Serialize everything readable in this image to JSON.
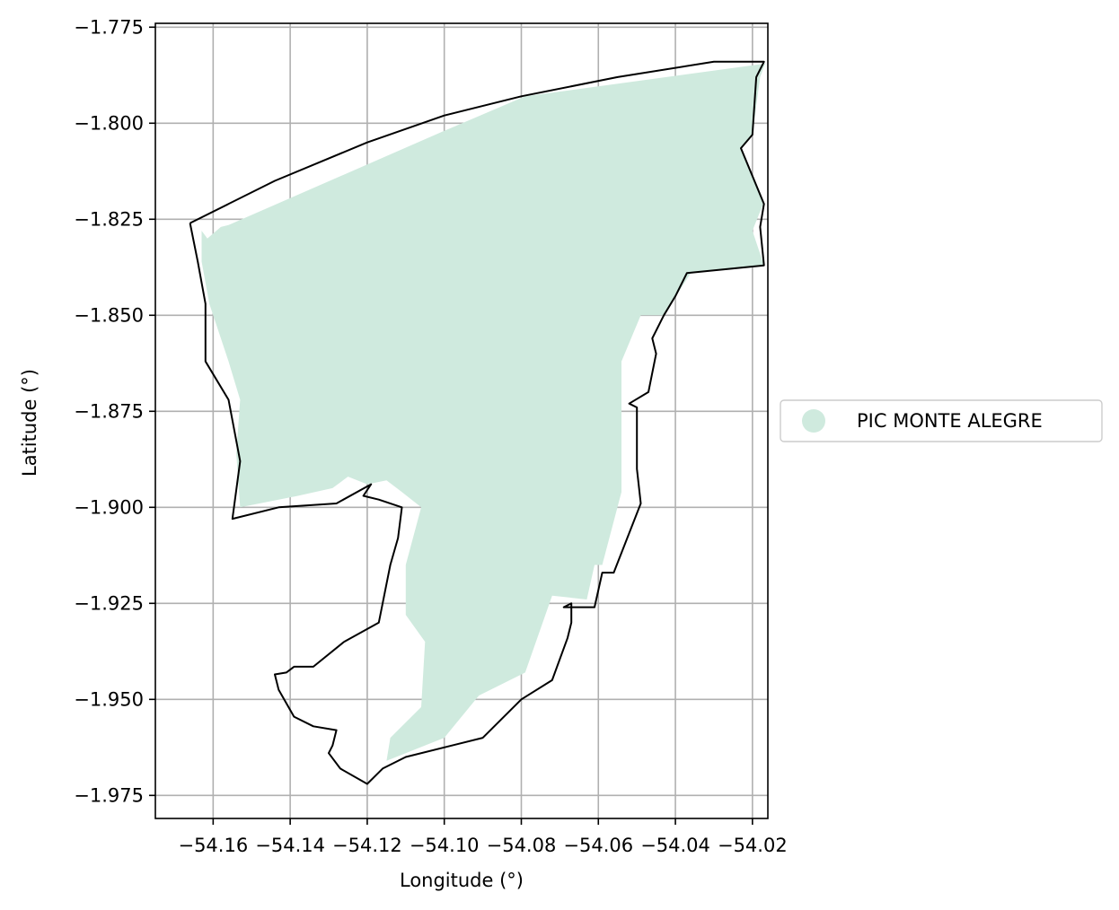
{
  "chart_data": {
    "type": "map",
    "title": "",
    "xlabel": "Longitude (°)",
    "ylabel": "Latitude (°)",
    "xlim": [
      -54.175,
      -54.016
    ],
    "ylim": [
      -1.981,
      -1.774
    ],
    "x_ticks": [
      -54.16,
      -54.14,
      -54.12,
      -54.1,
      -54.08,
      -54.06,
      -54.04,
      -54.02
    ],
    "x_tick_labels": [
      "−54.16",
      "−54.14",
      "−54.12",
      "−54.10",
      "−54.08",
      "−54.06",
      "−54.04",
      "−54.02"
    ],
    "y_ticks": [
      -1.775,
      -1.8,
      -1.825,
      -1.85,
      -1.875,
      -1.9,
      -1.925,
      -1.95,
      -1.975
    ],
    "y_tick_labels": [
      "−1.775",
      "−1.800",
      "−1.825",
      "−1.850",
      "−1.875",
      "−1.900",
      "−1.925",
      "−1.950",
      "−1.975"
    ],
    "grid": true,
    "legend": {
      "placement": "right",
      "entries": [
        {
          "label": "PIC MONTE ALEGRE",
          "color": "#cfeade"
        }
      ]
    },
    "filled_area": {
      "name": "PIC MONTE ALEGRE",
      "color": "#cfeade",
      "coords": [
        [
          -54.163,
          -1.828
        ],
        [
          -54.1615,
          -1.83
        ],
        [
          -54.158,
          -1.827
        ],
        [
          -54.156,
          -1.8265
        ],
        [
          -54.1,
          -1.802
        ],
        [
          -54.079,
          -1.793
        ],
        [
          -54.0167,
          -1.7845
        ],
        [
          -54.018,
          -1.788
        ],
        [
          -54.02,
          -1.803
        ],
        [
          -54.023,
          -1.8065
        ],
        [
          -54.017,
          -1.8205
        ],
        [
          -54.02,
          -1.828
        ],
        [
          -54.017,
          -1.837
        ],
        [
          -54.036,
          -1.839
        ],
        [
          -54.043,
          -1.85
        ],
        [
          -54.049,
          -1.85
        ],
        [
          -54.054,
          -1.862
        ],
        [
          -54.054,
          -1.896
        ],
        [
          -54.059,
          -1.915
        ],
        [
          -54.061,
          -1.915
        ],
        [
          -54.063,
          -1.924
        ],
        [
          -54.072,
          -1.923
        ],
        [
          -54.079,
          -1.943
        ],
        [
          -54.091,
          -1.949
        ],
        [
          -54.1,
          -1.96
        ],
        [
          -54.115,
          -1.966
        ],
        [
          -54.114,
          -1.96
        ],
        [
          -54.106,
          -1.952
        ],
        [
          -54.105,
          -1.935
        ],
        [
          -54.11,
          -1.928
        ],
        [
          -54.11,
          -1.915
        ],
        [
          -54.106,
          -1.9
        ],
        [
          -54.111,
          -1.896
        ],
        [
          -54.115,
          -1.893
        ],
        [
          -54.12,
          -1.894
        ],
        [
          -54.125,
          -1.892
        ],
        [
          -54.129,
          -1.895
        ],
        [
          -54.138,
          -1.897
        ],
        [
          -54.153,
          -1.9
        ],
        [
          -54.154,
          -1.886
        ],
        [
          -54.153,
          -1.872
        ],
        [
          -54.156,
          -1.862
        ],
        [
          -54.161,
          -1.847
        ],
        [
          -54.163,
          -1.836
        ]
      ]
    },
    "outline": {
      "color": "#000000",
      "coords": [
        [
          -54.166,
          -1.826
        ],
        [
          -54.144,
          -1.815
        ],
        [
          -54.12,
          -1.805
        ],
        [
          -54.1,
          -1.798
        ],
        [
          -54.08,
          -1.793
        ],
        [
          -54.055,
          -1.788
        ],
        [
          -54.03,
          -1.784
        ],
        [
          -54.017,
          -1.784
        ],
        [
          -54.019,
          -1.788
        ],
        [
          -54.02,
          -1.803
        ],
        [
          -54.023,
          -1.8065
        ],
        [
          -54.017,
          -1.821
        ],
        [
          -54.018,
          -1.827
        ],
        [
          -54.017,
          -1.837
        ],
        [
          -54.037,
          -1.839
        ],
        [
          -54.04,
          -1.845
        ],
        [
          -54.043,
          -1.85
        ],
        [
          -54.046,
          -1.856
        ],
        [
          -54.045,
          -1.86
        ],
        [
          -54.047,
          -1.87
        ],
        [
          -54.052,
          -1.873
        ],
        [
          -54.05,
          -1.874
        ],
        [
          -54.05,
          -1.89
        ],
        [
          -54.049,
          -1.899
        ],
        [
          -54.056,
          -1.917
        ],
        [
          -54.059,
          -1.917
        ],
        [
          -54.061,
          -1.926
        ],
        [
          -54.069,
          -1.926
        ],
        [
          -54.067,
          -1.925
        ],
        [
          -54.067,
          -1.93
        ],
        [
          -54.068,
          -1.934
        ],
        [
          -54.072,
          -1.945
        ],
        [
          -54.08,
          -1.95
        ],
        [
          -54.09,
          -1.96
        ],
        [
          -54.11,
          -1.965
        ],
        [
          -54.116,
          -1.968
        ],
        [
          -54.12,
          -1.972
        ],
        [
          -54.127,
          -1.968
        ],
        [
          -54.13,
          -1.964
        ],
        [
          -54.129,
          -1.962
        ],
        [
          -54.128,
          -1.958
        ],
        [
          -54.134,
          -1.957
        ],
        [
          -54.139,
          -1.9545
        ],
        [
          -54.143,
          -1.9475
        ],
        [
          -54.144,
          -1.9435
        ],
        [
          -54.141,
          -1.943
        ],
        [
          -54.139,
          -1.9415
        ],
        [
          -54.134,
          -1.9415
        ],
        [
          -54.126,
          -1.935
        ],
        [
          -54.117,
          -1.93
        ],
        [
          -54.114,
          -1.915
        ],
        [
          -54.112,
          -1.908
        ],
        [
          -54.111,
          -1.9
        ],
        [
          -54.117,
          -1.898
        ],
        [
          -54.121,
          -1.897
        ],
        [
          -54.119,
          -1.894
        ],
        [
          -54.128,
          -1.899
        ],
        [
          -54.143,
          -1.9
        ],
        [
          -54.155,
          -1.903
        ],
        [
          -54.153,
          -1.888
        ],
        [
          -54.156,
          -1.872
        ],
        [
          -54.162,
          -1.862
        ],
        [
          -54.162,
          -1.847
        ],
        [
          -54.164,
          -1.836
        ]
      ]
    }
  }
}
